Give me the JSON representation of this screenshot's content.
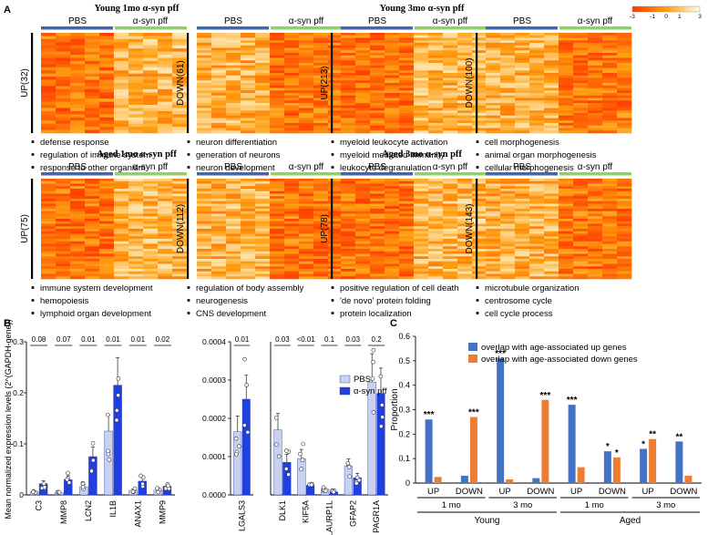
{
  "panel_labels": {
    "a": "A",
    "b": "B",
    "c": "C"
  },
  "group_labels": {
    "pbs": "PBS",
    "syn": "α-syn pff"
  },
  "colors": {
    "pbs_bar": "#4266b4",
    "syn_bar": "#8ed45b",
    "heat_lo": "#ff3b00",
    "heat_mid": "#ff9e10",
    "heat_hi": "#fffbe0"
  },
  "colorbar": {
    "ticks": [
      "-3",
      "-1",
      "0",
      "1",
      "3"
    ]
  },
  "heatmap_sections": [
    {
      "title": "Young 1mo α-syn pff",
      "maps": [
        {
          "label": "UP(32)",
          "terms": [
            "defense response",
            "regulation of immune system",
            "response to other organism"
          ]
        },
        {
          "label": "DOWN(61)",
          "terms": [
            "neuron differentiation",
            "generation of neurons",
            "neuron development"
          ]
        }
      ]
    },
    {
      "title": "Young 3mo α-syn pff",
      "maps": [
        {
          "label": "UP(213)",
          "terms": [
            "myeloid leukocyte activation",
            "myeloid mediated immunity",
            "leukocyte degranulation"
          ]
        },
        {
          "label": "DOWN(100)",
          "terms": [
            "cell morphogenesis",
            "animal organ morphogenesis",
            "cellular morphogenesis"
          ]
        }
      ]
    },
    {
      "title": "Aged 1mo α-syn pff",
      "maps": [
        {
          "label": "UP(75)",
          "terms": [
            "immune system development",
            "hemopoiesis",
            "lymphoid organ development"
          ]
        },
        {
          "label": "DOWN(112)",
          "terms": [
            "regulation of body assembly",
            "neurogenesis",
            "CNS development"
          ]
        }
      ]
    },
    {
      "title": "Aged 3mo α-syn pff",
      "maps": [
        {
          "label": "UP(78)",
          "terms": [
            "positive regulation of cell death",
            "'de novo' protein folding",
            "protein localization"
          ]
        },
        {
          "label": "DOWN(143)",
          "terms": [
            "microtubule organization",
            "centrosome cycle",
            "cell cycle process"
          ]
        }
      ]
    }
  ],
  "chart_data": [
    {
      "type": "bar",
      "ylabel": "Mean normalized expression levels (2^(GAPDH-gene))",
      "legend": [
        "PBS",
        "α-syn pff"
      ],
      "legend_position": "top-right",
      "subplots": [
        {
          "categories": [
            "C3",
            "MMP8",
            "LCN2",
            "IL1B",
            "ANAX1",
            "MMP9"
          ],
          "ylim": [
            0,
            0.3
          ],
          "yticks": [
            "0",
            "0.1",
            "0.2",
            "0.3"
          ],
          "pvalues": [
            "0.08",
            "0.07",
            "0.01",
            "0.01",
            "0.01",
            "0.02"
          ],
          "series": [
            {
              "name": "PBS",
              "values": [
                0.006,
                0.004,
                0.016,
                0.125,
                0.009,
                0.009
              ]
            },
            {
              "name": "α-syn pff",
              "values": [
                0.022,
                0.03,
                0.075,
                0.215,
                0.027,
                0.017
              ]
            }
          ]
        },
        {
          "categories": [
            "LGALS3"
          ],
          "ylim": [
            0,
            0.0004
          ],
          "yticks": [
            "0.0000",
            "0.0001",
            "0.0002",
            "0.0003",
            "0.0004"
          ],
          "pvalues": [
            "0.01"
          ],
          "series": [
            {
              "name": "PBS",
              "values": [
                0.000165
              ]
            },
            {
              "name": "α-syn pff",
              "values": [
                0.00025
              ]
            }
          ]
        },
        {
          "categories": [
            "DLK1",
            "KIF5A",
            "LAURP1L",
            "GFAP2",
            "PAGR1A"
          ],
          "ylim": [
            0,
            0.04
          ],
          "yticks": [],
          "pvalues": [
            "0.03",
            "<0.01",
            "0.1",
            "0.03",
            "0.2"
          ],
          "series": [
            {
              "name": "PBS",
              "values": [
                0.017,
                0.0095,
                0.0015,
                0.0075,
                0.0295
              ]
            },
            {
              "name": "α-syn pff",
              "values": [
                0.0085,
                0.0025,
                0.0008,
                0.0045,
                0.0265
              ]
            }
          ]
        }
      ]
    },
    {
      "type": "bar",
      "ylabel": "Proportion",
      "ylim": [
        0,
        0.6
      ],
      "yticks": [
        "0",
        "0.1",
        "0.2",
        "0.3",
        "0.4",
        "0.5",
        "0.6"
      ],
      "categories": [
        "UP",
        "DOWN",
        "UP",
        "DOWN",
        "UP",
        "DOWN",
        "UP",
        "DOWN"
      ],
      "time_groups": [
        "1 mo",
        "3 mo",
        "1 mo",
        "3 mo"
      ],
      "age_groups": [
        "Young",
        "Aged"
      ],
      "legend_position": "top-right",
      "series": [
        {
          "name": "overlap with age-associated up genes",
          "color": "#4472c4",
          "values": [
            0.26,
            0.03,
            0.51,
            0.02,
            0.32,
            0.13,
            0.14,
            0.17
          ]
        },
        {
          "name": "overlap with age-associated down genes",
          "color": "#ed7d31",
          "values": [
            0.025,
            0.27,
            0.015,
            0.34,
            0.065,
            0.105,
            0.18,
            0.03
          ]
        }
      ],
      "significance": [
        {
          "cat": 0,
          "series": 0,
          "mark": "***"
        },
        {
          "cat": 1,
          "series": 1,
          "mark": "***"
        },
        {
          "cat": 2,
          "series": 0,
          "mark": "***"
        },
        {
          "cat": 3,
          "series": 1,
          "mark": "***"
        },
        {
          "cat": 4,
          "series": 0,
          "mark": "***"
        },
        {
          "cat": 5,
          "series": 0,
          "mark": "*"
        },
        {
          "cat": 5,
          "series": 1,
          "mark": "*"
        },
        {
          "cat": 6,
          "series": 0,
          "mark": "*"
        },
        {
          "cat": 6,
          "series": 1,
          "mark": "**"
        },
        {
          "cat": 7,
          "series": 0,
          "mark": "**"
        }
      ]
    }
  ]
}
